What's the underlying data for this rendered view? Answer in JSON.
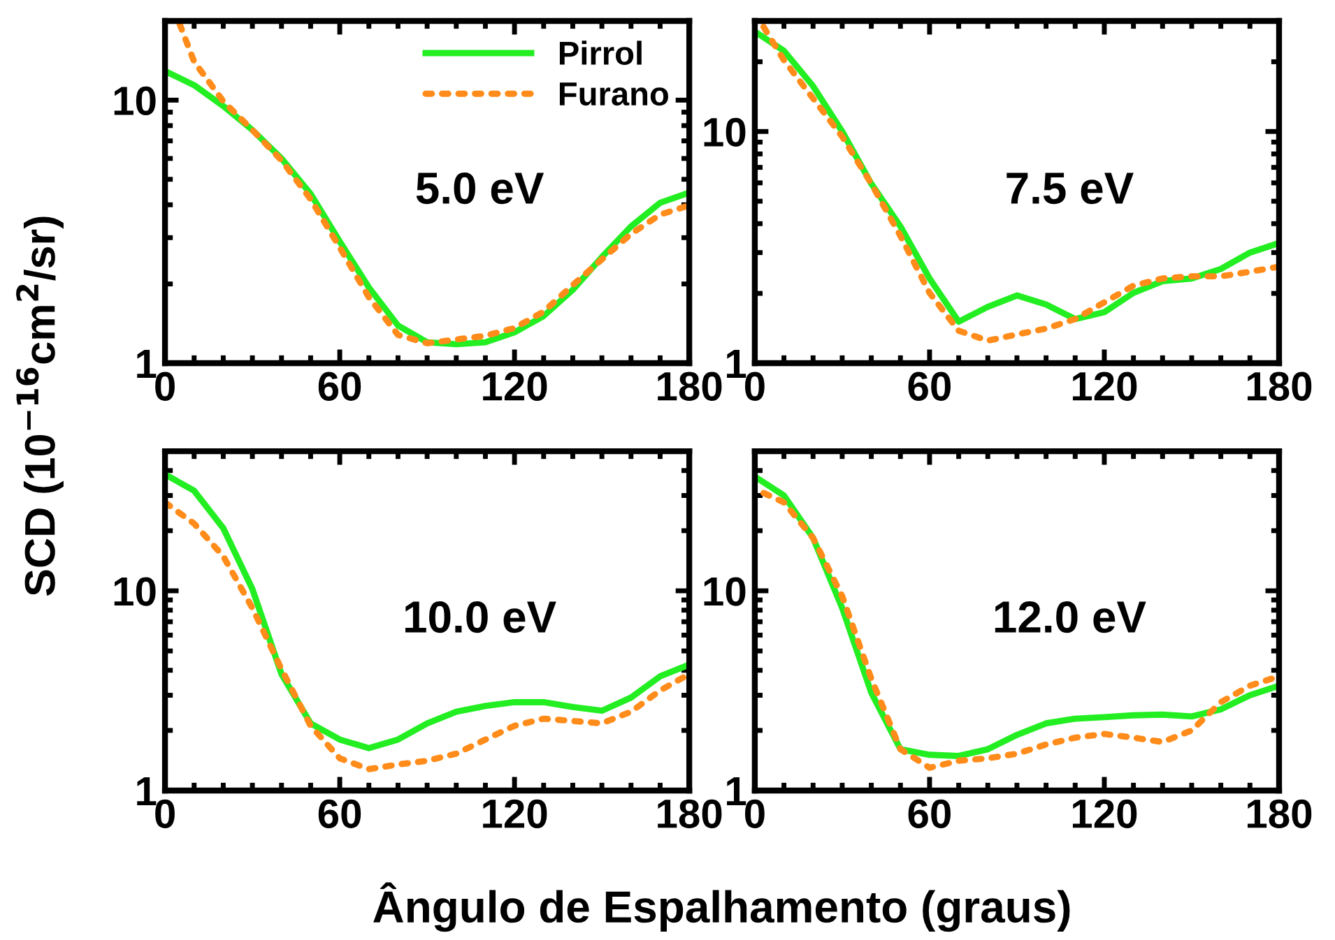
{
  "chart_data": [
    {
      "type": "line",
      "xlabel": "Ângulo de Espalhamento (graus)",
      "ylabel": "SCD (10$^{−16}$cm$^{2}$/sr)",
      "annotations": [
        "5.0 eV"
      ],
      "log": "y",
      "xlim": [
        0,
        180
      ],
      "xticks": [
        0,
        60,
        120,
        180
      ],
      "ylim": [
        1,
        20
      ],
      "yticks": [
        1,
        10
      ],
      "legend": "top right",
      "series": [
        {
          "name": "Pirrol",
          "color": "#22ee22",
          "line_style": "solid",
          "x": [
            0,
            10,
            20,
            30,
            40,
            50,
            60,
            70,
            80,
            90,
            100,
            110,
            120,
            130,
            140,
            150,
            160,
            170,
            180
          ],
          "values": [
            12.9,
            11.4,
            9.5,
            7.7,
            6.0,
            4.4,
            2.9,
            1.94,
            1.39,
            1.2,
            1.18,
            1.2,
            1.31,
            1.51,
            1.9,
            2.53,
            3.31,
            4.07,
            4.45
          ]
        },
        {
          "name": "Furano",
          "color": "#ff8c1a",
          "line_style": "dotted",
          "x": [
            5,
            10,
            20,
            30,
            40,
            50,
            60,
            70,
            80,
            90,
            100,
            110,
            120,
            130,
            140,
            150,
            160,
            170,
            180
          ],
          "values": [
            19.5,
            14.0,
            9.9,
            7.7,
            5.9,
            4.2,
            2.75,
            1.78,
            1.28,
            1.19,
            1.23,
            1.27,
            1.36,
            1.57,
            1.98,
            2.48,
            3.1,
            3.67,
            3.98
          ]
        }
      ]
    },
    {
      "type": "line",
      "annotations": [
        "7.5 eV"
      ],
      "log": "y",
      "xlim": [
        0,
        180
      ],
      "xticks": [
        0,
        60,
        120,
        180
      ],
      "ylim": [
        1,
        30
      ],
      "yticks": [
        1,
        10
      ],
      "series": [
        {
          "color": "#22ee22",
          "line_style": "solid",
          "x": [
            0,
            10,
            20,
            30,
            40,
            50,
            60,
            70,
            80,
            90,
            100,
            110,
            120,
            130,
            140,
            150,
            160,
            170,
            180
          ],
          "values": [
            27,
            22.3,
            15.7,
            10,
            5.95,
            3.89,
            2.32,
            1.51,
            1.75,
            1.96,
            1.79,
            1.55,
            1.66,
            2.01,
            2.26,
            2.32,
            2.55,
            3.0,
            3.3
          ]
        },
        {
          "color": "#ff8c1a",
          "line_style": "dotted",
          "x": [
            3,
            10,
            20,
            30,
            40,
            50,
            60,
            70,
            80,
            90,
            100,
            110,
            120,
            130,
            140,
            150,
            160,
            170,
            180
          ],
          "values": [
            28.3,
            20.3,
            13.9,
            9.5,
            5.95,
            3.54,
            2.01,
            1.38,
            1.25,
            1.33,
            1.41,
            1.55,
            1.83,
            2.16,
            2.32,
            2.37,
            2.37,
            2.48,
            2.61
          ]
        }
      ]
    },
    {
      "type": "line",
      "annotations": [
        "10.0 eV"
      ],
      "log": "y",
      "xlim": [
        0,
        180
      ],
      "xticks": [
        0,
        60,
        120,
        180
      ],
      "ylim": [
        1,
        50
      ],
      "yticks": [
        1,
        10
      ],
      "series": [
        {
          "color": "#22ee22",
          "line_style": "solid",
          "x": [
            0,
            10,
            20,
            30,
            40,
            50,
            60,
            70,
            80,
            90,
            100,
            110,
            120,
            130,
            140,
            150,
            160,
            170,
            180
          ],
          "values": [
            38.3,
            31.7,
            20.6,
            10.2,
            3.83,
            2.17,
            1.8,
            1.63,
            1.8,
            2.17,
            2.48,
            2.65,
            2.77,
            2.77,
            2.62,
            2.51,
            2.92,
            3.73,
            4.27
          ]
        },
        {
          "color": "#ff8c1a",
          "line_style": "dotted",
          "x": [
            0,
            10,
            20,
            30,
            40,
            50,
            60,
            70,
            80,
            90,
            100,
            110,
            120,
            130,
            140,
            150,
            160,
            170,
            180
          ],
          "values": [
            27.7,
            21.7,
            14.9,
            8.2,
            4.05,
            2.11,
            1.45,
            1.28,
            1.35,
            1.41,
            1.53,
            1.8,
            2.11,
            2.29,
            2.23,
            2.17,
            2.48,
            3.17,
            3.83
          ]
        }
      ]
    },
    {
      "type": "line",
      "annotations": [
        "12.0 eV"
      ],
      "log": "y",
      "xlim": [
        0,
        180
      ],
      "xticks": [
        0,
        60,
        120,
        180
      ],
      "ylim": [
        1,
        50
      ],
      "yticks": [
        1,
        10
      ],
      "series": [
        {
          "color": "#22ee22",
          "line_style": "solid",
          "x": [
            0,
            10,
            20,
            30,
            40,
            50,
            60,
            70,
            80,
            90,
            100,
            110,
            120,
            130,
            140,
            150,
            160,
            170,
            180
          ],
          "values": [
            37.3,
            30.0,
            18.4,
            8.2,
            3.09,
            1.61,
            1.51,
            1.49,
            1.61,
            1.9,
            2.17,
            2.29,
            2.33,
            2.38,
            2.4,
            2.35,
            2.55,
            3.0,
            3.35
          ]
        },
        {
          "color": "#ff8c1a",
          "line_style": "dotted",
          "x": [
            3,
            10,
            20,
            30,
            40,
            50,
            60,
            70,
            80,
            90,
            100,
            110,
            120,
            130,
            140,
            150,
            160,
            170,
            180
          ],
          "values": [
            30.9,
            27.7,
            18.4,
            9.4,
            3.63,
            1.61,
            1.3,
            1.41,
            1.45,
            1.53,
            1.7,
            1.84,
            1.92,
            1.84,
            1.75,
            2.0,
            2.77,
            3.35,
            3.73
          ]
        }
      ]
    }
  ]
}
